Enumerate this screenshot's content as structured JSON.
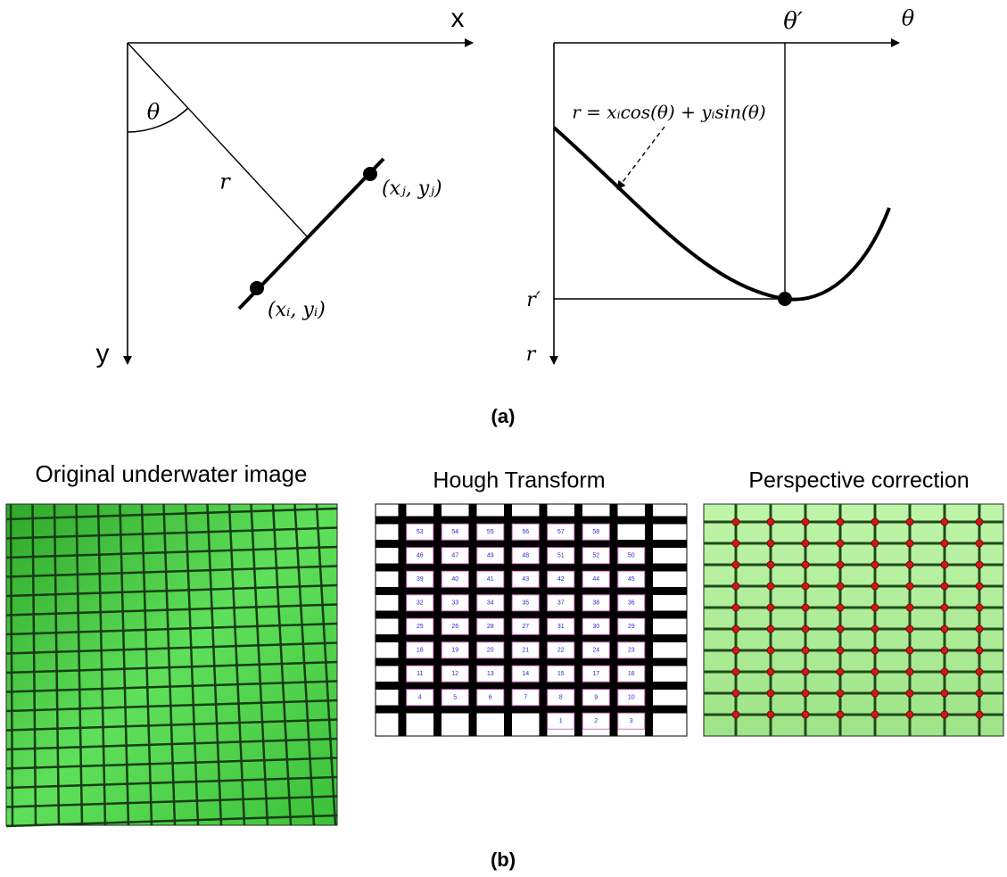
{
  "panel_a": {
    "caption": "(a)",
    "image_space": {
      "x_axis": "x",
      "y_axis": "y",
      "angle": "θ",
      "distance": "r",
      "point_i": "(xᵢ, yᵢ)",
      "point_j": "(xⱼ, yⱼ)"
    },
    "hough_space": {
      "x_axis": "θ",
      "y_axis": "r",
      "theta_prime": "θ′",
      "r_prime": "r′",
      "equation": "r = xᵢcos(θ) + yᵢsin(θ)"
    }
  },
  "panel_b": {
    "caption": "(b)",
    "original_title": "Original underwater image",
    "hough_title": "Hough Transform",
    "perspective_title": "Perspective correction",
    "hough_labels": [
      [
        "53",
        "54",
        "55",
        "56",
        "57",
        "58"
      ],
      [
        "46",
        "47",
        "49",
        "48",
        "51",
        "52",
        "50"
      ],
      [
        "39",
        "40",
        "41",
        "43",
        "42",
        "44",
        "45"
      ],
      [
        "32",
        "33",
        "34",
        "35",
        "37",
        "38",
        "36"
      ],
      [
        "25",
        "26",
        "28",
        "27",
        "31",
        "30",
        "29"
      ],
      [
        "18",
        "19",
        "20",
        "21",
        "22",
        "24",
        "23"
      ],
      [
        "11",
        "12",
        "13",
        "14",
        "15",
        "17",
        "16"
      ],
      [
        "4",
        "5",
        "6",
        "7",
        "8",
        "9",
        "10"
      ],
      [
        "1",
        "2",
        "3"
      ]
    ]
  }
}
